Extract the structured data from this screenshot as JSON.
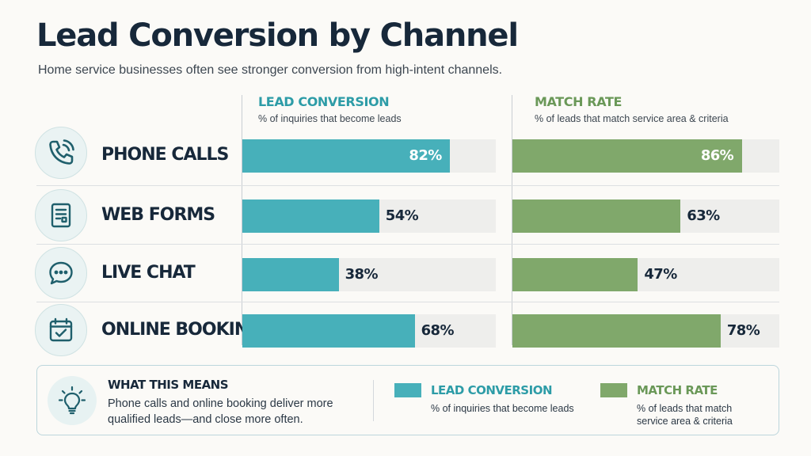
{
  "title": "Lead Conversion by Channel",
  "subtitle": "Home service businesses often see stronger conversion from high-intent channels.",
  "columns": {
    "lead": {
      "heading": "LEAD CONVERSION",
      "desc": "% of inquiries that become leads",
      "color": "#47b0ba",
      "heading_color": "#2d9ca7"
    },
    "match": {
      "heading": "MATCH RATE",
      "desc": "% of leads that match service area & criteria",
      "color": "#80a86b",
      "heading_color": "#6a9858"
    }
  },
  "rows": [
    {
      "label": "PHONE CALLS",
      "icon": "phone-icon",
      "lead_text": "82%",
      "match_text": "86%"
    },
    {
      "label": "WEB FORMS",
      "icon": "form-icon",
      "lead_text": "54%",
      "match_text": "63%"
    },
    {
      "label": "LIVE CHAT",
      "icon": "chat-icon",
      "lead_text": "38%",
      "match_text": "47%"
    },
    {
      "label": "ONLINE BOOKING",
      "icon": "calendar-icon",
      "lead_text": "68%",
      "match_text": "78%"
    }
  ],
  "chart_data": {
    "type": "bar",
    "orientation": "horizontal",
    "categories": [
      "PHONE CALLS",
      "WEB FORMS",
      "LIVE CHAT",
      "ONLINE BOOKING"
    ],
    "series": [
      {
        "name": "LEAD CONVERSION",
        "values": [
          82,
          54,
          38,
          68
        ],
        "color": "#47b0ba"
      },
      {
        "name": "MATCH RATE",
        "values": [
          86,
          63,
          47,
          78
        ],
        "color": "#80a86b"
      }
    ],
    "title": "Lead Conversion by Channel",
    "xlim": [
      0,
      100
    ],
    "unit": "%",
    "grid": false
  },
  "footer": {
    "heading": "WHAT THIS MEANS",
    "body": "Phone calls and online booking deliver more qualified leads—and close more often.",
    "icon": "lightbulb-icon",
    "legend": [
      {
        "label": "LEAD CONVERSION",
        "desc": "% of inquiries that become leads",
        "color": "#47b0ba"
      },
      {
        "label": "MATCH RATE",
        "desc": "% of leads that match service area & criteria",
        "color": "#80a86b"
      }
    ]
  }
}
